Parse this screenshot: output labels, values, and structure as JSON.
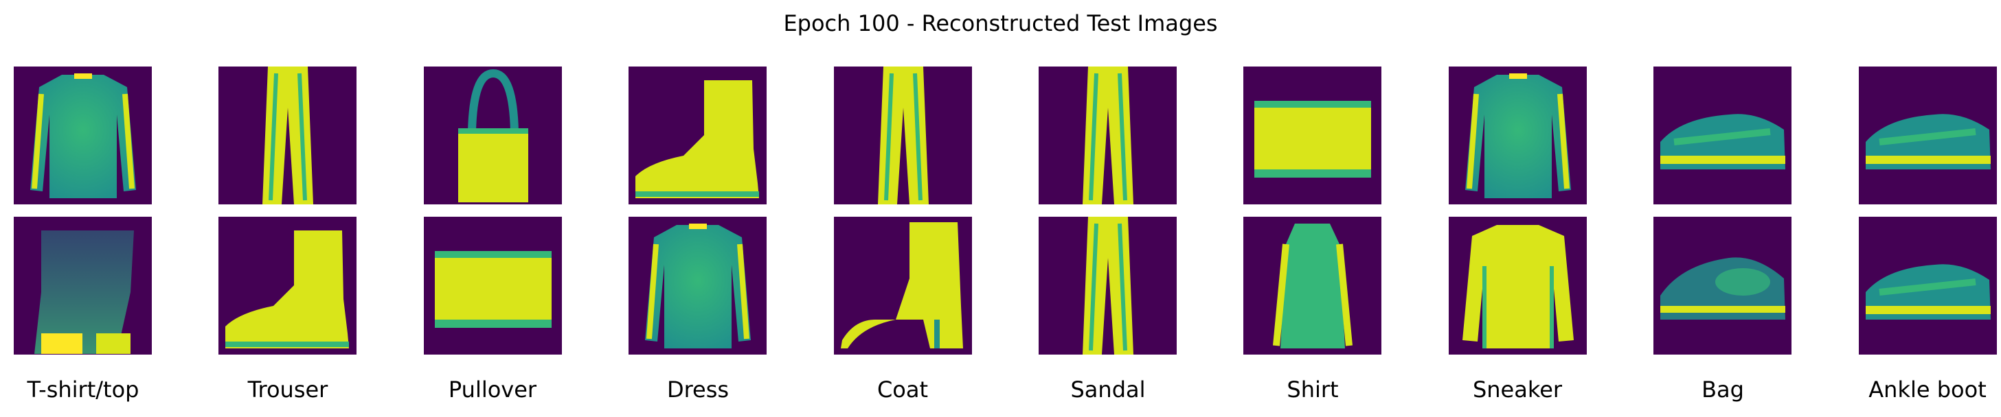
{
  "title": "Epoch 100 - Reconstructed Test Images",
  "labels": [
    "T-shirt/top",
    "Trouser",
    "Pullover",
    "Dress",
    "Coat",
    "Sandal",
    "Shirt",
    "Sneaker",
    "Bag",
    "Ankle boot"
  ],
  "rows": [
    [
      "shirt",
      "trouser",
      "bag",
      "boot",
      "trouser",
      "trouser",
      "bag-flat",
      "shirt",
      "sneaker",
      "sneaker"
    ],
    [
      "boot-blur",
      "boot",
      "bag-flat",
      "shirt",
      "boot-heel",
      "trouser",
      "dress",
      "shirt-bright",
      "sneaker-blur",
      "sneaker"
    ]
  ],
  "colors": {
    "background": "#440154",
    "mid": "#21918c",
    "teal": "#35b779",
    "bright": "#d9e51a",
    "yellow": "#fde725"
  }
}
